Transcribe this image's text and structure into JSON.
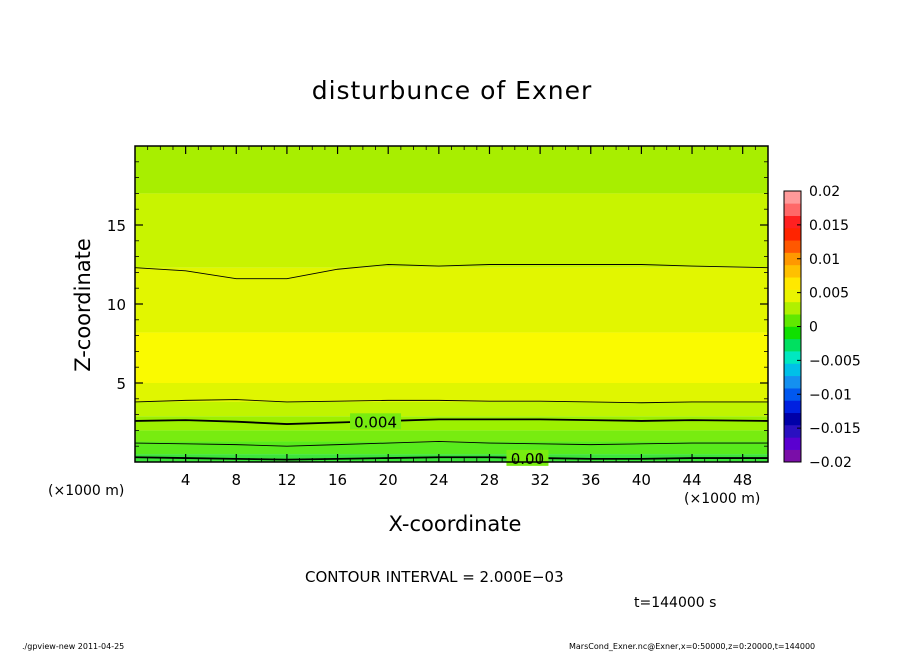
{
  "chart_data": {
    "type": "heatmap",
    "title": "disturbunce of Exner",
    "xlabel": "X-coordinate",
    "ylabel": "Z-coordinate",
    "x_unit_left": "(×1000 m)",
    "x_unit_right": "(×1000 m)",
    "xlim": [
      0,
      50
    ],
    "ylim": [
      0,
      20
    ],
    "x_ticks": [
      4,
      8,
      12,
      16,
      20,
      24,
      28,
      32,
      36,
      40,
      44,
      48
    ],
    "y_ticks": [
      5,
      10,
      15
    ],
    "colorbar": {
      "min": -0.02,
      "max": 0.02,
      "tick_values": [
        0.02,
        0.015,
        0.01,
        0.005,
        0,
        -0.005,
        -0.01,
        -0.015,
        -0.02
      ],
      "tick_labels": [
        "0.02",
        "0.015",
        "0.01",
        "0.005",
        "0",
        "−0.005",
        "−0.01",
        "−0.015",
        "−0.02"
      ],
      "colors": [
        "#7a0ea8",
        "#5a00d0",
        "#2a10c0",
        "#0000a8",
        "#0020e0",
        "#0058f0",
        "#1490f0",
        "#00c0e8",
        "#00e8c0",
        "#00e060",
        "#10e000",
        "#60e800",
        "#b0f000",
        "#eaf400",
        "#ffe800",
        "#ffc000",
        "#ff9800",
        "#ff5800",
        "#ff2400",
        "#ff2020",
        "#ff6868",
        "#ff9a9a"
      ]
    },
    "fill_bands": [
      {
        "z_low": 0,
        "z_high": 0.5,
        "value": 0.002,
        "color": "#3ce43c"
      },
      {
        "z_low": 0.5,
        "z_high": 1.3,
        "value": 0.003,
        "color": "#58ea1c"
      },
      {
        "z_low": 1.3,
        "z_high": 2.0,
        "value": 0.0035,
        "color": "#78ec10"
      },
      {
        "z_low": 2.0,
        "z_high": 2.9,
        "value": 0.0045,
        "color": "#9cf000"
      },
      {
        "z_low": 2.9,
        "z_high": 3.8,
        "value": 0.005,
        "color": "#c0f400"
      },
      {
        "z_low": 3.8,
        "z_high": 5.0,
        "value": 0.0058,
        "color": "#e0f600"
      },
      {
        "z_low": 5.0,
        "z_high": 8.2,
        "value": 0.0064,
        "color": "#fafa00"
      },
      {
        "z_low": 8.2,
        "z_high": 12.3,
        "value": 0.0058,
        "color": "#e2f600"
      },
      {
        "z_low": 12.3,
        "z_high": 17.0,
        "value": 0.005,
        "color": "#c8f400"
      },
      {
        "z_low": 17.0,
        "z_high": 20.0,
        "value": 0.0046,
        "color": "#a8ee00"
      }
    ],
    "contours": [
      {
        "level": 0.0,
        "label": "0.00",
        "label_x": 31,
        "z": [
          0.3,
          0.25,
          0.2,
          0.15,
          0.2,
          0.25,
          0.3,
          0.3,
          0.25,
          0.2,
          0.2,
          0.25,
          0.25
        ],
        "bold": true
      },
      {
        "level": 0.002,
        "label": "",
        "z": [
          1.2,
          1.15,
          1.1,
          1.0,
          1.1,
          1.2,
          1.3,
          1.2,
          1.15,
          1.1,
          1.15,
          1.2,
          1.2
        ],
        "bold": false
      },
      {
        "level": 0.004,
        "label": "0.004",
        "label_x": 19,
        "z": [
          2.6,
          2.65,
          2.55,
          2.4,
          2.5,
          2.6,
          2.7,
          2.7,
          2.7,
          2.65,
          2.6,
          2.65,
          2.6
        ],
        "bold": true
      },
      {
        "level": 0.006,
        "label": "",
        "z": [
          3.8,
          3.9,
          3.95,
          3.8,
          3.85,
          3.9,
          3.9,
          3.85,
          3.85,
          3.8,
          3.75,
          3.8,
          3.8
        ],
        "bold": false
      },
      {
        "level": 0.006,
        "label": "",
        "z": [
          12.3,
          12.1,
          11.6,
          11.6,
          12.2,
          12.5,
          12.4,
          12.5,
          12.5,
          12.5,
          12.5,
          12.4,
          12.3
        ],
        "bold": false
      }
    ],
    "contour_x": [
      0,
      4,
      8,
      12,
      16,
      20,
      24,
      28,
      32,
      36,
      40,
      44,
      50
    ]
  },
  "annotations": {
    "contour_interval": "CONTOUR INTERVAL = 2.000E−03",
    "time": "t=144000  s",
    "footer_left": "./gpview-new   2011-04-25",
    "footer_right": "MarsCond_Exner.nc@Exner,x=0:50000,z=0:20000,t=144000"
  }
}
